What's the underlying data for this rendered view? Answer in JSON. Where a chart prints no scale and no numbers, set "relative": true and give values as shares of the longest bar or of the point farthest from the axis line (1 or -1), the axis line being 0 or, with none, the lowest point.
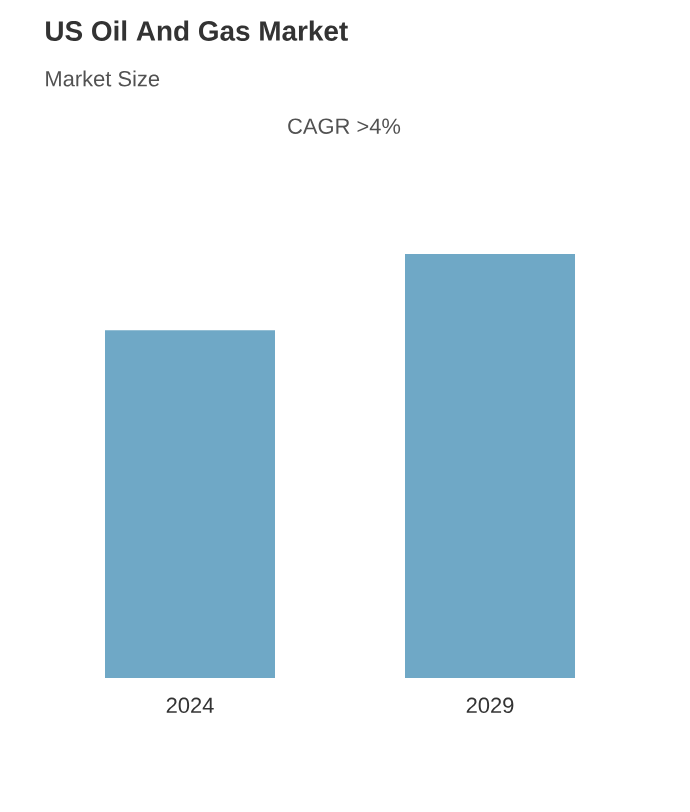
{
  "chart_data": {
    "type": "bar",
    "title": "US Oil And Gas Market",
    "subtitle": "Market Size",
    "annotations": [
      "CAGR >4%"
    ],
    "categories": [
      "2024",
      "2029"
    ],
    "values": [
      0.82,
      1
    ],
    "color": "#6fa8c6",
    "relative": true
  }
}
